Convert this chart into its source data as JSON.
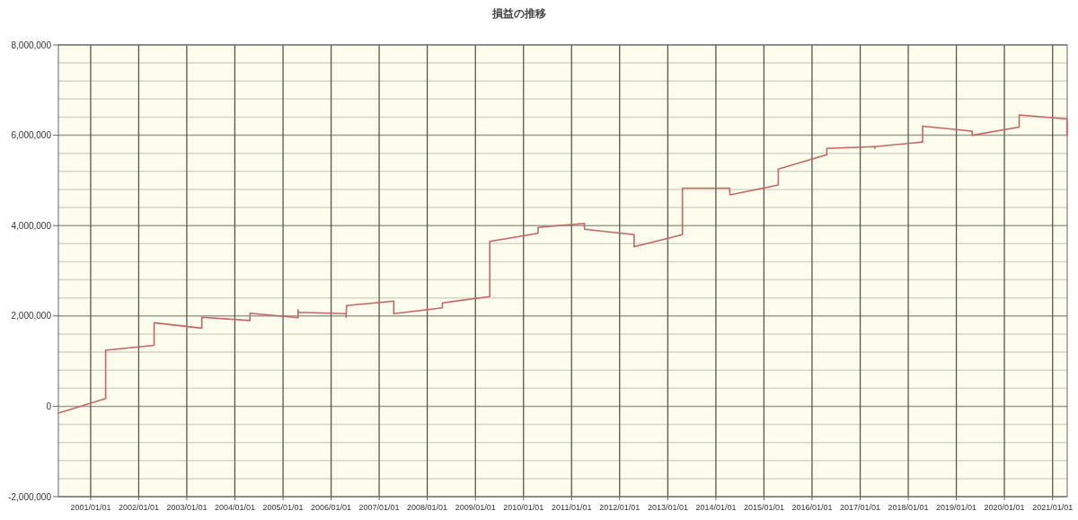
{
  "chart_data": {
    "type": "line",
    "title": "損益の推移",
    "x": [
      "2000-05-01",
      "2001-04-25",
      "2001-04-25",
      "2002-04-28",
      "2002-04-28",
      "2003-04-25",
      "2003-04-25",
      "2004-04-25",
      "2004-04-25",
      "2005-04-25",
      "2005-04-25",
      "2005-04-28",
      "2006-04-25",
      "2006-04-25",
      "2006-04-28",
      "2007-04-22",
      "2007-04-22",
      "2008-04-25",
      "2008-04-25",
      "2009-04-20",
      "2009-04-20",
      "2010-04-22",
      "2010-04-22",
      "2011-04-08",
      "2011-04-10",
      "2012-04-20",
      "2012-04-20",
      "2013-04-22",
      "2013-04-22",
      "2014-04-15",
      "2014-04-18",
      "2015-04-20",
      "2015-04-20",
      "2016-04-22",
      "2016-04-22",
      "2017-04-22",
      "2017-04-22",
      "2017-04-24",
      "2018-04-20",
      "2018-04-20",
      "2019-05-01",
      "2019-05-01",
      "2020-04-22",
      "2020-04-22",
      "2021-04-20",
      "2021-04-20"
    ],
    "series": [
      {
        "color": "#c86464",
        "values": [
          -150000,
          170000,
          1240000,
          1350000,
          1850000,
          1730000,
          1970000,
          1900000,
          2060000,
          1960000,
          2140000,
          2080000,
          2050000,
          1970000,
          2230000,
          2330000,
          2050000,
          2180000,
          2290000,
          2430000,
          3650000,
          3830000,
          3960000,
          4050000,
          3920000,
          3800000,
          3530000,
          3800000,
          4830000,
          4830000,
          4680000,
          4900000,
          5250000,
          5570000,
          5710000,
          5750000,
          5710000,
          5750000,
          5850000,
          6200000,
          6090000,
          6000000,
          6180000,
          6450000,
          6360000,
          6000000
        ]
      }
    ],
    "xlim": [
      "2000-05-01",
      "2021-04-22"
    ],
    "ylim": [
      -2000000,
      8000000
    ],
    "xticks": [
      {
        "value": "2001-01-01",
        "label": "2001/01/01"
      },
      {
        "value": "2002-01-01",
        "label": "2002/01/01"
      },
      {
        "value": "2003-01-01",
        "label": "2003/01/01"
      },
      {
        "value": "2004-01-01",
        "label": "2004/01/01"
      },
      {
        "value": "2005-01-01",
        "label": "2005/01/01"
      },
      {
        "value": "2006-01-01",
        "label": "2006/01/01"
      },
      {
        "value": "2007-01-01",
        "label": "2007/01/01"
      },
      {
        "value": "2008-01-01",
        "label": "2008/01/01"
      },
      {
        "value": "2009-01-01",
        "label": "2009/01/01"
      },
      {
        "value": "2010-01-01",
        "label": "2010/01/01"
      },
      {
        "value": "2011-01-01",
        "label": "2011/01/01"
      },
      {
        "value": "2012-01-01",
        "label": "2012/01/01"
      },
      {
        "value": "2013-01-01",
        "label": "2013/01/01"
      },
      {
        "value": "2014-01-01",
        "label": "2014/01/01"
      },
      {
        "value": "2015-01-01",
        "label": "2015/01/01"
      },
      {
        "value": "2016-01-01",
        "label": "2016/01/01"
      },
      {
        "value": "2017-01-01",
        "label": "2017/01/01"
      },
      {
        "value": "2018-01-01",
        "label": "2018/01/01"
      },
      {
        "value": "2019-01-01",
        "label": "2019/01/01"
      },
      {
        "value": "2020-01-01",
        "label": "2020/01/01"
      },
      {
        "value": "2021-01-01",
        "label": "2021/01/01"
      }
    ],
    "yticks": [
      {
        "value": -2000000,
        "label": "-2,000,000"
      },
      {
        "value": -1600000,
        "label": null
      },
      {
        "value": -1200000,
        "label": null
      },
      {
        "value": -800000,
        "label": null
      },
      {
        "value": -400000,
        "label": null
      },
      0,
      {
        "value": 400000,
        "label": null
      },
      {
        "value": 800000,
        "label": null
      },
      {
        "value": 1200000,
        "label": null
      },
      {
        "value": 1600000,
        "label": null
      },
      {
        "value": 2000000,
        "label": "2,000,000"
      },
      {
        "value": 2400000,
        "label": null
      },
      {
        "value": 2800000,
        "label": null
      },
      {
        "value": 3200000,
        "label": null
      },
      {
        "value": 3600000,
        "label": null
      },
      {
        "value": 4000000,
        "label": "4,000,000"
      },
      {
        "value": 4400000,
        "label": null
      },
      {
        "value": 4800000,
        "label": null
      },
      {
        "value": 5200000,
        "label": null
      },
      {
        "value": 5600000,
        "label": null
      },
      {
        "value": 6000000,
        "label": "6,000,000"
      },
      {
        "value": 6400000,
        "label": null
      },
      {
        "value": 6800000,
        "label": null
      },
      {
        "value": 7200000,
        "label": null
      },
      {
        "value": 7600000,
        "label": null
      },
      {
        "value": 8000000,
        "label": "8,000,000"
      }
    ],
    "grid": true,
    "marker": "none",
    "line_style": "solid"
  }
}
